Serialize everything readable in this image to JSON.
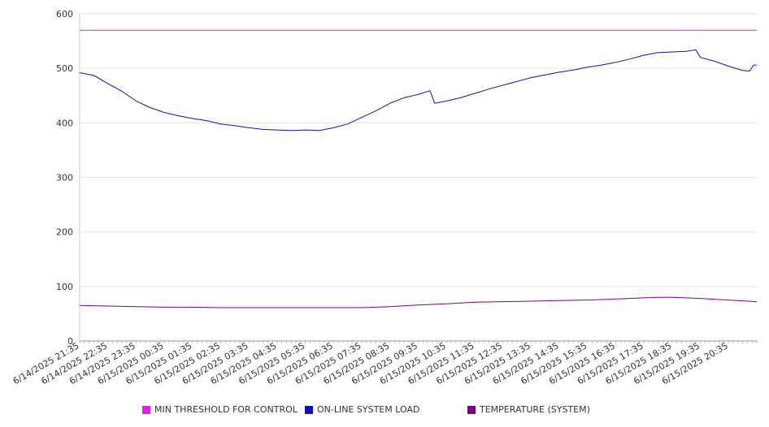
{
  "chart_data": {
    "type": "line",
    "title": "",
    "xlabel": "",
    "ylabel": "",
    "ylim": [
      0,
      600
    ],
    "y_ticks": [
      0,
      100,
      200,
      300,
      400,
      500,
      600
    ],
    "grid": true,
    "legend_position": "bottom",
    "x_tick_labels": [
      "6/14/2025 21:35",
      "6/14/2025 22:35",
      "6/14/2025 23:35",
      "6/15/2025 00:35",
      "6/15/2025 01:35",
      "6/15/2025 02:35",
      "6/15/2025 03:35",
      "6/15/2025 04:35",
      "6/15/2025 05:35",
      "6/15/2025 06:35",
      "6/15/2025 07:35",
      "6/15/2025 08:35",
      "6/15/2025 09:35",
      "6/15/2025 10:35",
      "6/15/2025 11:35",
      "6/15/2025 12:35",
      "6/15/2025 13:35",
      "6/15/2025 14:35",
      "6/15/2025 15:35",
      "6/15/2025 16:35",
      "6/15/2025 17:35",
      "6/15/2025 18:35",
      "6/15/2025 19:35",
      "6/15/2025 20:35"
    ],
    "series": [
      {
        "name": "MIN THRESHOLD FOR CONTROL",
        "color": "#e020e0",
        "points": [
          [
            "6/14/2025 21:35",
            570
          ],
          [
            "6/15/2025 21:35",
            570
          ]
        ]
      },
      {
        "name": "ON-LINE SYSTEM LOAD",
        "color": "#1010c0",
        "points": [
          [
            "6/14/2025 21:35",
            492
          ],
          [
            "6/14/2025 22:05",
            487
          ],
          [
            "6/14/2025 22:35",
            472
          ],
          [
            "6/14/2025 23:05",
            458
          ],
          [
            "6/14/2025 23:35",
            440
          ],
          [
            "6/15/2025 00:05",
            428
          ],
          [
            "6/15/2025 00:35",
            419
          ],
          [
            "6/15/2025 01:05",
            413
          ],
          [
            "6/15/2025 01:35",
            408
          ],
          [
            "6/15/2025 02:05",
            404
          ],
          [
            "6/15/2025 02:35",
            398
          ],
          [
            "6/15/2025 03:05",
            395
          ],
          [
            "6/15/2025 03:35",
            391
          ],
          [
            "6/15/2025 04:05",
            388
          ],
          [
            "6/15/2025 04:35",
            387
          ],
          [
            "6/15/2025 05:05",
            386
          ],
          [
            "6/15/2025 05:35",
            387
          ],
          [
            "6/15/2025 06:05",
            386
          ],
          [
            "6/15/2025 06:35",
            391
          ],
          [
            "6/15/2025 07:05",
            398
          ],
          [
            "6/15/2025 07:35",
            410
          ],
          [
            "6/15/2025 08:05",
            422
          ],
          [
            "6/15/2025 08:35",
            436
          ],
          [
            "6/15/2025 09:05",
            446
          ],
          [
            "6/15/2025 09:35",
            452
          ],
          [
            "6/15/2025 10:00",
            459
          ],
          [
            "6/15/2025 10:10",
            436
          ],
          [
            "6/15/2025 10:35",
            440
          ],
          [
            "6/15/2025 11:05",
            446
          ],
          [
            "6/15/2025 11:35",
            454
          ],
          [
            "6/15/2025 12:05",
            462
          ],
          [
            "6/15/2025 12:35",
            469
          ],
          [
            "6/15/2025 13:05",
            476
          ],
          [
            "6/15/2025 13:35",
            483
          ],
          [
            "6/15/2025 14:05",
            488
          ],
          [
            "6/15/2025 14:35",
            493
          ],
          [
            "6/15/2025 15:05",
            497
          ],
          [
            "6/15/2025 15:35",
            502
          ],
          [
            "6/15/2025 16:05",
            506
          ],
          [
            "6/15/2025 16:35",
            511
          ],
          [
            "6/15/2025 17:05",
            517
          ],
          [
            "6/15/2025 17:35",
            524
          ],
          [
            "6/15/2025 18:05",
            529
          ],
          [
            "6/15/2025 18:35",
            530
          ],
          [
            "6/15/2025 19:05",
            531
          ],
          [
            "6/15/2025 19:25",
            534
          ],
          [
            "6/15/2025 19:35",
            520
          ],
          [
            "6/15/2025 20:05",
            513
          ],
          [
            "6/15/2025 20:35",
            504
          ],
          [
            "6/15/2025 21:05",
            496
          ],
          [
            "6/15/2025 21:20",
            495
          ],
          [
            "6/15/2025 21:28",
            506
          ],
          [
            "6/15/2025 21:35",
            506
          ]
        ]
      },
      {
        "name": "TEMPERATURE (SYSTEM)",
        "color": "#800080",
        "points": [
          [
            "6/14/2025 21:35",
            65
          ],
          [
            "6/14/2025 22:35",
            64
          ],
          [
            "6/14/2025 23:35",
            63
          ],
          [
            "6/15/2025 00:35",
            62
          ],
          [
            "6/15/2025 01:35",
            62
          ],
          [
            "6/15/2025 02:35",
            61
          ],
          [
            "6/15/2025 03:35",
            61
          ],
          [
            "6/15/2025 04:35",
            61
          ],
          [
            "6/15/2025 05:35",
            61
          ],
          [
            "6/15/2025 06:35",
            61
          ],
          [
            "6/15/2025 07:35",
            61
          ],
          [
            "6/15/2025 08:35",
            63
          ],
          [
            "6/15/2025 09:35",
            66
          ],
          [
            "6/15/2025 10:35",
            68
          ],
          [
            "6/15/2025 11:35",
            71
          ],
          [
            "6/15/2025 12:35",
            72
          ],
          [
            "6/15/2025 13:35",
            73
          ],
          [
            "6/15/2025 14:35",
            74
          ],
          [
            "6/15/2025 15:35",
            75
          ],
          [
            "6/15/2025 16:35",
            77
          ],
          [
            "6/15/2025 17:35",
            79
          ],
          [
            "6/15/2025 18:05",
            80
          ],
          [
            "6/15/2025 18:35",
            80
          ],
          [
            "6/15/2025 19:35",
            78
          ],
          [
            "6/15/2025 20:35",
            75
          ],
          [
            "6/15/2025 21:35",
            72
          ]
        ]
      }
    ]
  }
}
